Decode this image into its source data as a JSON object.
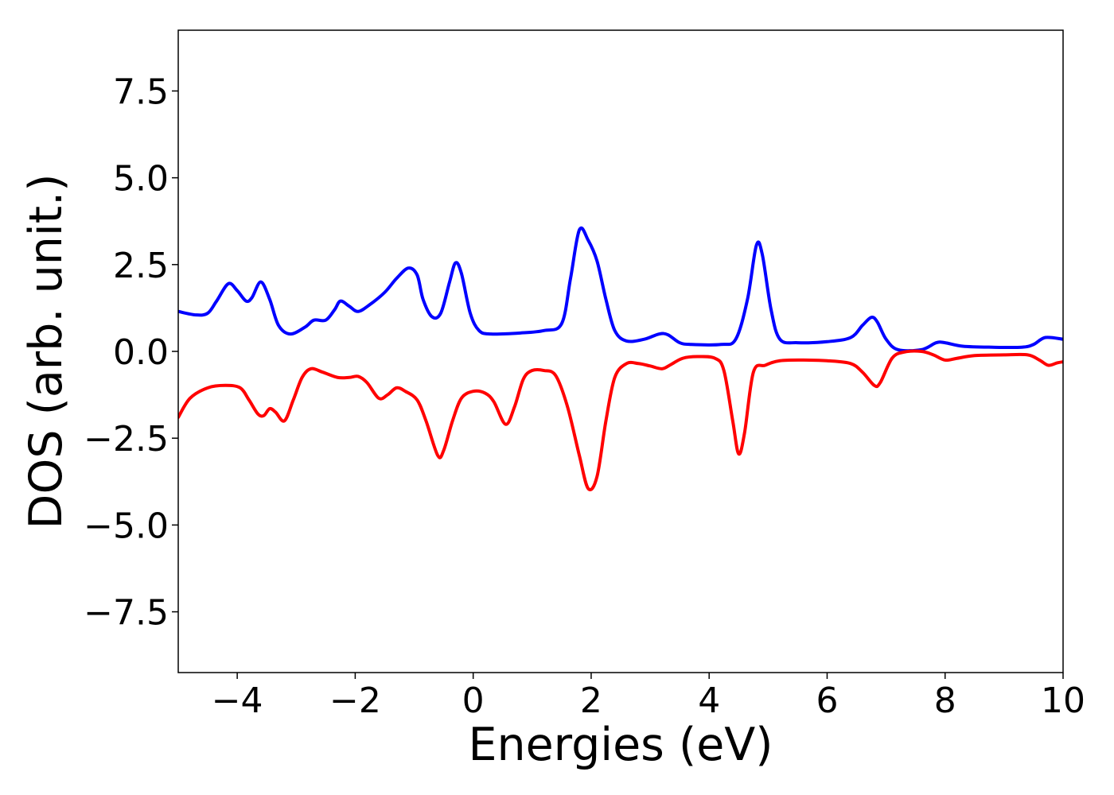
{
  "chart_data": {
    "type": "line",
    "title": "",
    "xlabel": "Energies (eV)",
    "ylabel": "DOS (arb. unit.)",
    "xlim": [
      -5,
      10
    ],
    "ylim": [
      -9.25,
      9.25
    ],
    "xticks": [
      -4,
      -2,
      0,
      2,
      4,
      6,
      8,
      10
    ],
    "xtick_labels": [
      "−4",
      "−2",
      "0",
      "2",
      "4",
      "6",
      "8",
      "10"
    ],
    "yticks": [
      7.5,
      5.0,
      2.5,
      0.0,
      -2.5,
      -5.0,
      -7.5
    ],
    "ytick_labels": [
      "7.5",
      "5.0",
      "2.5",
      "0.0",
      "−2.5",
      "−5.0",
      "−7.5"
    ],
    "grid": false,
    "legend": "none",
    "series": [
      {
        "color": "#0000ff",
        "points": [
          [
            -5.0,
            1.15
          ],
          [
            -4.7,
            1.05
          ],
          [
            -4.5,
            1.1
          ],
          [
            -4.35,
            1.45
          ],
          [
            -4.15,
            1.95
          ],
          [
            -4.0,
            1.75
          ],
          [
            -3.85,
            1.45
          ],
          [
            -3.75,
            1.55
          ],
          [
            -3.6,
            2.0
          ],
          [
            -3.45,
            1.5
          ],
          [
            -3.3,
            0.75
          ],
          [
            -3.1,
            0.5
          ],
          [
            -2.85,
            0.7
          ],
          [
            -2.7,
            0.9
          ],
          [
            -2.5,
            0.9
          ],
          [
            -2.35,
            1.2
          ],
          [
            -2.25,
            1.45
          ],
          [
            -2.1,
            1.3
          ],
          [
            -1.95,
            1.15
          ],
          [
            -1.75,
            1.35
          ],
          [
            -1.5,
            1.7
          ],
          [
            -1.3,
            2.1
          ],
          [
            -1.1,
            2.4
          ],
          [
            -0.95,
            2.2
          ],
          [
            -0.85,
            1.5
          ],
          [
            -0.7,
            1.0
          ],
          [
            -0.55,
            1.1
          ],
          [
            -0.4,
            2.0
          ],
          [
            -0.3,
            2.55
          ],
          [
            -0.2,
            2.25
          ],
          [
            -0.05,
            1.1
          ],
          [
            0.1,
            0.6
          ],
          [
            0.3,
            0.5
          ],
          [
            0.8,
            0.53
          ],
          [
            1.2,
            0.6
          ],
          [
            1.5,
            0.8
          ],
          [
            1.65,
            2.1
          ],
          [
            1.8,
            3.5
          ],
          [
            1.95,
            3.2
          ],
          [
            2.1,
            2.6
          ],
          [
            2.25,
            1.5
          ],
          [
            2.4,
            0.6
          ],
          [
            2.6,
            0.3
          ],
          [
            2.9,
            0.35
          ],
          [
            3.15,
            0.5
          ],
          [
            3.3,
            0.48
          ],
          [
            3.5,
            0.25
          ],
          [
            3.7,
            0.2
          ],
          [
            4.2,
            0.2
          ],
          [
            4.45,
            0.35
          ],
          [
            4.65,
            1.5
          ],
          [
            4.8,
            3.05
          ],
          [
            4.9,
            2.8
          ],
          [
            5.05,
            1.2
          ],
          [
            5.2,
            0.35
          ],
          [
            5.5,
            0.25
          ],
          [
            6.0,
            0.28
          ],
          [
            6.4,
            0.4
          ],
          [
            6.6,
            0.75
          ],
          [
            6.75,
            0.98
          ],
          [
            6.85,
            0.85
          ],
          [
            7.0,
            0.35
          ],
          [
            7.2,
            0.05
          ],
          [
            7.6,
            0.05
          ],
          [
            7.85,
            0.25
          ],
          [
            8.0,
            0.25
          ],
          [
            8.3,
            0.15
          ],
          [
            8.8,
            0.12
          ],
          [
            9.3,
            0.12
          ],
          [
            9.5,
            0.2
          ],
          [
            9.7,
            0.4
          ],
          [
            10.0,
            0.35
          ]
        ]
      },
      {
        "color": "#ff0000",
        "points": [
          [
            -5.0,
            -1.9
          ],
          [
            -4.8,
            -1.35
          ],
          [
            -4.5,
            -1.05
          ],
          [
            -4.2,
            -0.98
          ],
          [
            -3.95,
            -1.05
          ],
          [
            -3.8,
            -1.4
          ],
          [
            -3.65,
            -1.8
          ],
          [
            -3.55,
            -1.85
          ],
          [
            -3.45,
            -1.65
          ],
          [
            -3.35,
            -1.75
          ],
          [
            -3.2,
            -2.0
          ],
          [
            -3.05,
            -1.4
          ],
          [
            -2.9,
            -0.75
          ],
          [
            -2.75,
            -0.5
          ],
          [
            -2.55,
            -0.6
          ],
          [
            -2.3,
            -0.75
          ],
          [
            -2.1,
            -0.75
          ],
          [
            -1.95,
            -0.72
          ],
          [
            -1.8,
            -0.9
          ],
          [
            -1.6,
            -1.35
          ],
          [
            -1.45,
            -1.25
          ],
          [
            -1.3,
            -1.05
          ],
          [
            -1.15,
            -1.15
          ],
          [
            -0.95,
            -1.4
          ],
          [
            -0.8,
            -2.0
          ],
          [
            -0.6,
            -3.0
          ],
          [
            -0.5,
            -2.85
          ],
          [
            -0.35,
            -2.0
          ],
          [
            -0.2,
            -1.35
          ],
          [
            0.0,
            -1.15
          ],
          [
            0.2,
            -1.2
          ],
          [
            0.35,
            -1.45
          ],
          [
            0.55,
            -2.1
          ],
          [
            0.7,
            -1.6
          ],
          [
            0.85,
            -0.8
          ],
          [
            1.0,
            -0.55
          ],
          [
            1.2,
            -0.55
          ],
          [
            1.4,
            -0.7
          ],
          [
            1.6,
            -1.6
          ],
          [
            1.8,
            -3.0
          ],
          [
            1.95,
            -3.95
          ],
          [
            2.1,
            -3.6
          ],
          [
            2.25,
            -2.0
          ],
          [
            2.4,
            -0.75
          ],
          [
            2.6,
            -0.35
          ],
          [
            2.8,
            -0.35
          ],
          [
            3.0,
            -0.42
          ],
          [
            3.2,
            -0.5
          ],
          [
            3.35,
            -0.38
          ],
          [
            3.55,
            -0.2
          ],
          [
            3.8,
            -0.15
          ],
          [
            4.1,
            -0.2
          ],
          [
            4.25,
            -0.55
          ],
          [
            4.4,
            -2.0
          ],
          [
            4.5,
            -2.95
          ],
          [
            4.6,
            -2.35
          ],
          [
            4.75,
            -0.6
          ],
          [
            4.95,
            -0.4
          ],
          [
            5.2,
            -0.27
          ],
          [
            5.6,
            -0.25
          ],
          [
            6.0,
            -0.27
          ],
          [
            6.4,
            -0.35
          ],
          [
            6.6,
            -0.6
          ],
          [
            6.8,
            -0.98
          ],
          [
            6.9,
            -0.9
          ],
          [
            7.1,
            -0.2
          ],
          [
            7.3,
            -0.02
          ],
          [
            7.6,
            0.0
          ],
          [
            7.8,
            -0.1
          ],
          [
            8.0,
            -0.25
          ],
          [
            8.2,
            -0.2
          ],
          [
            8.5,
            -0.12
          ],
          [
            9.0,
            -0.1
          ],
          [
            9.4,
            -0.1
          ],
          [
            9.6,
            -0.25
          ],
          [
            9.75,
            -0.4
          ],
          [
            9.9,
            -0.33
          ],
          [
            10.0,
            -0.3
          ]
        ]
      }
    ]
  }
}
